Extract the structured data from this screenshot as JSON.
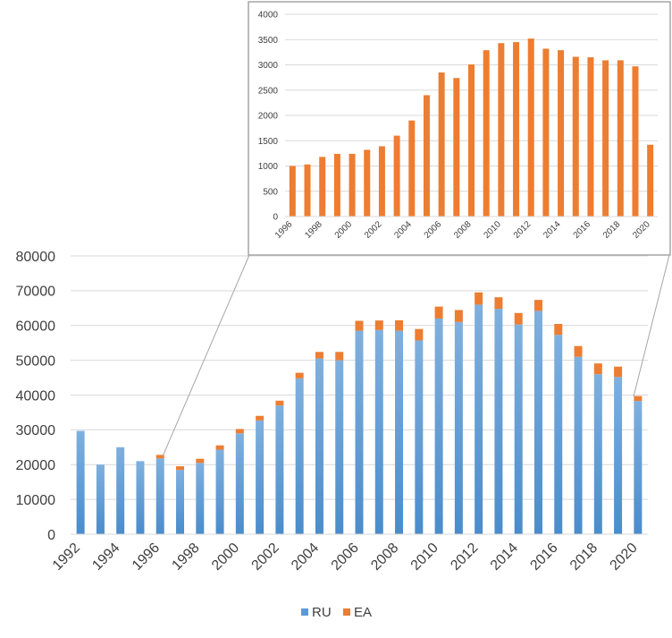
{
  "chart_data": [
    {
      "id": "main",
      "type": "bar",
      "stacked": true,
      "x": [
        1992,
        1993,
        1994,
        1995,
        1996,
        1997,
        1998,
        1999,
        2000,
        2001,
        2002,
        2003,
        2004,
        2005,
        2006,
        2007,
        2008,
        2009,
        2010,
        2011,
        2012,
        2013,
        2014,
        2015,
        2016,
        2017,
        2018,
        2019,
        2020
      ],
      "x_tick_labels": [
        "1992",
        "1994",
        "1996",
        "1998",
        "2000",
        "2002",
        "2004",
        "2006",
        "2008",
        "2010",
        "2012",
        "2014",
        "2016",
        "2018",
        "2020"
      ],
      "y_tick_labels": [
        "0",
        "10000",
        "20000",
        "30000",
        "40000",
        "50000",
        "60000",
        "70000",
        "80000"
      ],
      "ylim": [
        0,
        80000
      ],
      "grid": true,
      "legend": {
        "position": "bottom",
        "entries": [
          "RU",
          "EA"
        ]
      },
      "series": [
        {
          "name": "RU",
          "color": "#5b9bd5",
          "values": [
            29700,
            20000,
            25000,
            21000,
            21800,
            18500,
            20500,
            24300,
            29000,
            32700,
            37000,
            44800,
            50500,
            50000,
            58500,
            58700,
            58500,
            55700,
            62000,
            61000,
            66000,
            64800,
            60300,
            64200,
            57300,
            51000,
            46000,
            45200,
            38300
          ]
        },
        {
          "name": "EA",
          "color": "#ed7d31",
          "values": [
            0,
            0,
            0,
            0,
            1000,
            1030,
            1180,
            1240,
            1240,
            1320,
            1390,
            1600,
            1900,
            2400,
            2850,
            2740,
            3010,
            3290,
            3430,
            3450,
            3520,
            3320,
            3290,
            3160,
            3150,
            3090,
            3090,
            2970,
            1420
          ]
        }
      ]
    },
    {
      "id": "inset",
      "type": "bar",
      "x": [
        1996,
        1997,
        1998,
        1999,
        2000,
        2001,
        2002,
        2003,
        2004,
        2005,
        2006,
        2007,
        2008,
        2009,
        2010,
        2011,
        2012,
        2013,
        2014,
        2015,
        2016,
        2017,
        2018,
        2019,
        2020
      ],
      "x_tick_labels": [
        "1996",
        "1998",
        "2000",
        "2002",
        "2004",
        "2006",
        "2008",
        "2010",
        "2012",
        "2014",
        "2016",
        "2018",
        "2020"
      ],
      "y_tick_labels": [
        "0",
        "500",
        "1000",
        "1500",
        "2000",
        "2500",
        "3000",
        "3500",
        "4000"
      ],
      "ylim": [
        0,
        4000
      ],
      "grid": true,
      "series": [
        {
          "name": "EA",
          "color": "#ed7d31",
          "values": [
            1000,
            1030,
            1180,
            1240,
            1240,
            1320,
            1390,
            1600,
            1900,
            2400,
            2850,
            2740,
            3010,
            3290,
            3430,
            3450,
            3520,
            3320,
            3290,
            3160,
            3150,
            3090,
            3090,
            2970,
            1420
          ]
        }
      ]
    }
  ]
}
